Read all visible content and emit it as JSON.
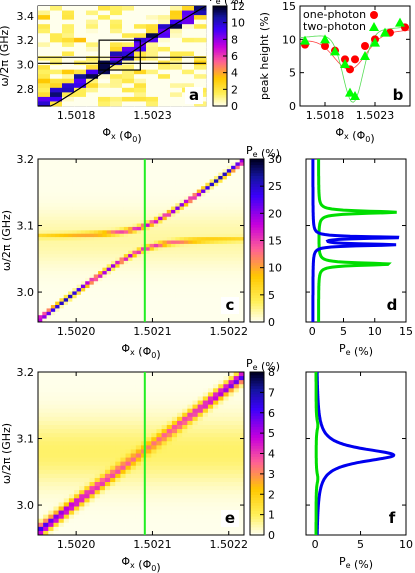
{
  "chart_data": [
    {
      "panel": "a",
      "type": "heatmap",
      "xlabel": "Φx (Φ0)",
      "ylabel": "ω/2π (GHz)",
      "xticks": [
        "1.5018",
        "1.5023"
      ],
      "yticks": [
        "2.8",
        "3.0",
        "3.2",
        "3.4"
      ],
      "colorbar_label": "Pe (%)",
      "colorbar_ticks": [
        "0",
        "2",
        "4",
        "6",
        "8",
        "10",
        "12"
      ],
      "xlim": [
        1.50155,
        1.50265
      ],
      "ylim": [
        2.66,
        3.48
      ],
      "zlim": [
        0,
        12
      ],
      "annotation": "a"
    },
    {
      "panel": "b",
      "type": "scatter",
      "xlabel": "Φx (Φ0)",
      "ylabel": "peak height (%)",
      "xticks": [
        "1.5018",
        "1.5023"
      ],
      "yticks": [
        "0",
        "5",
        "10",
        "15"
      ],
      "xlim": [
        1.50155,
        1.50265
      ],
      "ylim": [
        0,
        15
      ],
      "legend_position": "top-left",
      "series": [
        {
          "name": "one-photon",
          "color": "#ff0000",
          "x": [
            1.5016,
            1.5018,
            1.5019,
            1.502,
            1.50205,
            1.5021,
            1.5022,
            1.5023,
            1.50245,
            1.5026
          ],
          "y": [
            9.2,
            9.0,
            8.3,
            7.0,
            5.5,
            7.0,
            9.0,
            10.0,
            11.0,
            11.8
          ]
        },
        {
          "name": "two-photon",
          "color": "#00ff00",
          "x": [
            1.5016,
            1.5018,
            1.5019,
            1.502,
            1.50205,
            1.5021,
            1.5022,
            1.5023,
            1.5024,
            1.50255
          ],
          "y": [
            9.8,
            10.0,
            8.2,
            6.3,
            2.0,
            1.5,
            7.5,
            9.5,
            11.0,
            12.5
          ]
        }
      ],
      "annotation": "b"
    },
    {
      "panel": "c",
      "type": "heatmap",
      "xlabel": "Φx (Φ0)",
      "ylabel": "ω/2π (GHz)",
      "xticks": [
        "1.5020",
        "1.5021",
        "1.5022"
      ],
      "yticks": [
        "3.0",
        "3.1",
        "3.2"
      ],
      "colorbar_label": "Pe (%)",
      "colorbar_ticks": [
        "0",
        "5",
        "10",
        "15",
        "20",
        "25",
        "30"
      ],
      "xlim": [
        1.50195,
        1.50222
      ],
      "ylim": [
        2.955,
        3.2
      ],
      "zlim": [
        0,
        30
      ],
      "vertical_line": 1.50209,
      "annotation": "c"
    },
    {
      "panel": "d",
      "type": "line",
      "xlabel": "Pe (%)",
      "xticks": [
        "0",
        "5",
        "10",
        "15"
      ],
      "xlim": [
        -1,
        15
      ],
      "ylim": [
        2.955,
        3.2
      ],
      "series": [
        {
          "color": "#00dd00",
          "baseline": 1.0,
          "peaks": [
            {
              "y": 3.12,
              "amp": 12.5,
              "w": 0.0022
            },
            {
              "y": 3.042,
              "amp": 11.5,
              "w": 0.0022
            }
          ]
        },
        {
          "color": "#0000ee",
          "baseline": 0.1,
          "peaks": [
            {
              "y": 3.082,
              "amp": 14.0,
              "w": 0.0017
            },
            {
              "y": 3.071,
              "amp": 13.0,
              "w": 0.0017
            }
          ]
        }
      ],
      "annotation": "d"
    },
    {
      "panel": "e",
      "type": "heatmap",
      "xlabel": "Φx (Φ0)",
      "ylabel": "ω/2π (GHz)",
      "xticks": [
        "1.5020",
        "1.5021",
        "1.5022"
      ],
      "yticks": [
        "3.0",
        "3.1",
        "3.2"
      ],
      "colorbar_label": "Pe (%)",
      "colorbar_ticks": [
        "0",
        "1",
        "2",
        "3",
        "4",
        "5",
        "6",
        "7",
        "8"
      ],
      "xlim": [
        1.50195,
        1.50222
      ],
      "ylim": [
        2.955,
        3.2
      ],
      "zlim": [
        0,
        8
      ],
      "vertical_line": 1.50209,
      "annotation": "e"
    },
    {
      "panel": "f",
      "type": "line",
      "xlabel": "Pe (%)",
      "xticks": [
        "0",
        "5",
        "10"
      ],
      "xlim": [
        -1,
        10
      ],
      "ylim": [
        2.955,
        3.2
      ],
      "series": [
        {
          "color": "#0000ee",
          "baseline": 0.15,
          "peaks": [
            {
              "y": 3.075,
              "amp": 8.5,
              "w": 0.012
            }
          ]
        },
        {
          "color": "#00dd00",
          "baseline": 0.1,
          "peaks": [
            {
              "y": 3.12,
              "amp": 0.2,
              "w": 0.01
            },
            {
              "y": 3.04,
              "amp": 0.2,
              "w": 0.01
            }
          ]
        }
      ],
      "annotation": "f"
    }
  ]
}
